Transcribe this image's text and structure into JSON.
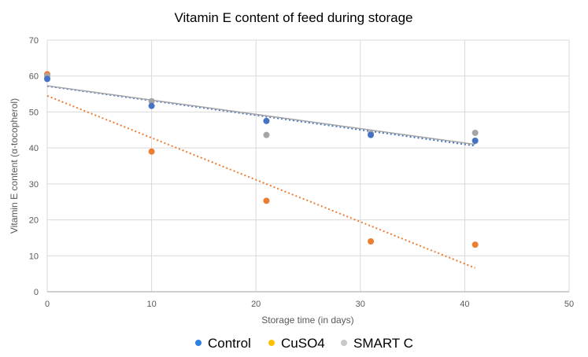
{
  "chart_data": {
    "type": "scatter",
    "title": "Vitamin E content of feed during storage",
    "xlabel": "Storage time (in days)",
    "ylabel": "Vitamin E content (α-tocopherol)",
    "xlim": [
      0,
      50
    ],
    "ylim": [
      0,
      70
    ],
    "xticks": [
      0,
      10,
      20,
      30,
      40,
      50
    ],
    "yticks": [
      0,
      10,
      20,
      30,
      40,
      50,
      60,
      70
    ],
    "grid": true,
    "legend_position": "bottom",
    "series": [
      {
        "name": "Control",
        "color": "#4472C4",
        "legend_color": "#2F80E0",
        "x": [
          0,
          10,
          21,
          31,
          41
        ],
        "y": [
          59.2,
          51.7,
          47.5,
          43.6,
          42.0
        ],
        "trendline": {
          "type": "linear",
          "x": [
            0,
            41
          ],
          "y": [
            57.2,
            40.6
          ],
          "style": "dotted"
        }
      },
      {
        "name": "CuSO4",
        "color": "#ED7D31",
        "legend_color": "#FFC000",
        "x": [
          0,
          10,
          21,
          31,
          41
        ],
        "y": [
          60.5,
          39.0,
          25.3,
          14.0,
          13.1
        ],
        "trendline": {
          "type": "linear",
          "x": [
            0,
            41
          ],
          "y": [
            54.5,
            6.6
          ],
          "style": "dotted"
        }
      },
      {
        "name": "SMART C",
        "color": "#A5A5A5",
        "legend_color": "#C8C8C8",
        "x": [
          0,
          10,
          21,
          31,
          41
        ],
        "y": [
          60.0,
          53.0,
          43.6,
          44.0,
          44.2
        ],
        "trendline": {
          "type": "linear",
          "x": [
            0,
            41
          ],
          "y": [
            57.3,
            41.0
          ],
          "style": "solid"
        }
      }
    ]
  }
}
